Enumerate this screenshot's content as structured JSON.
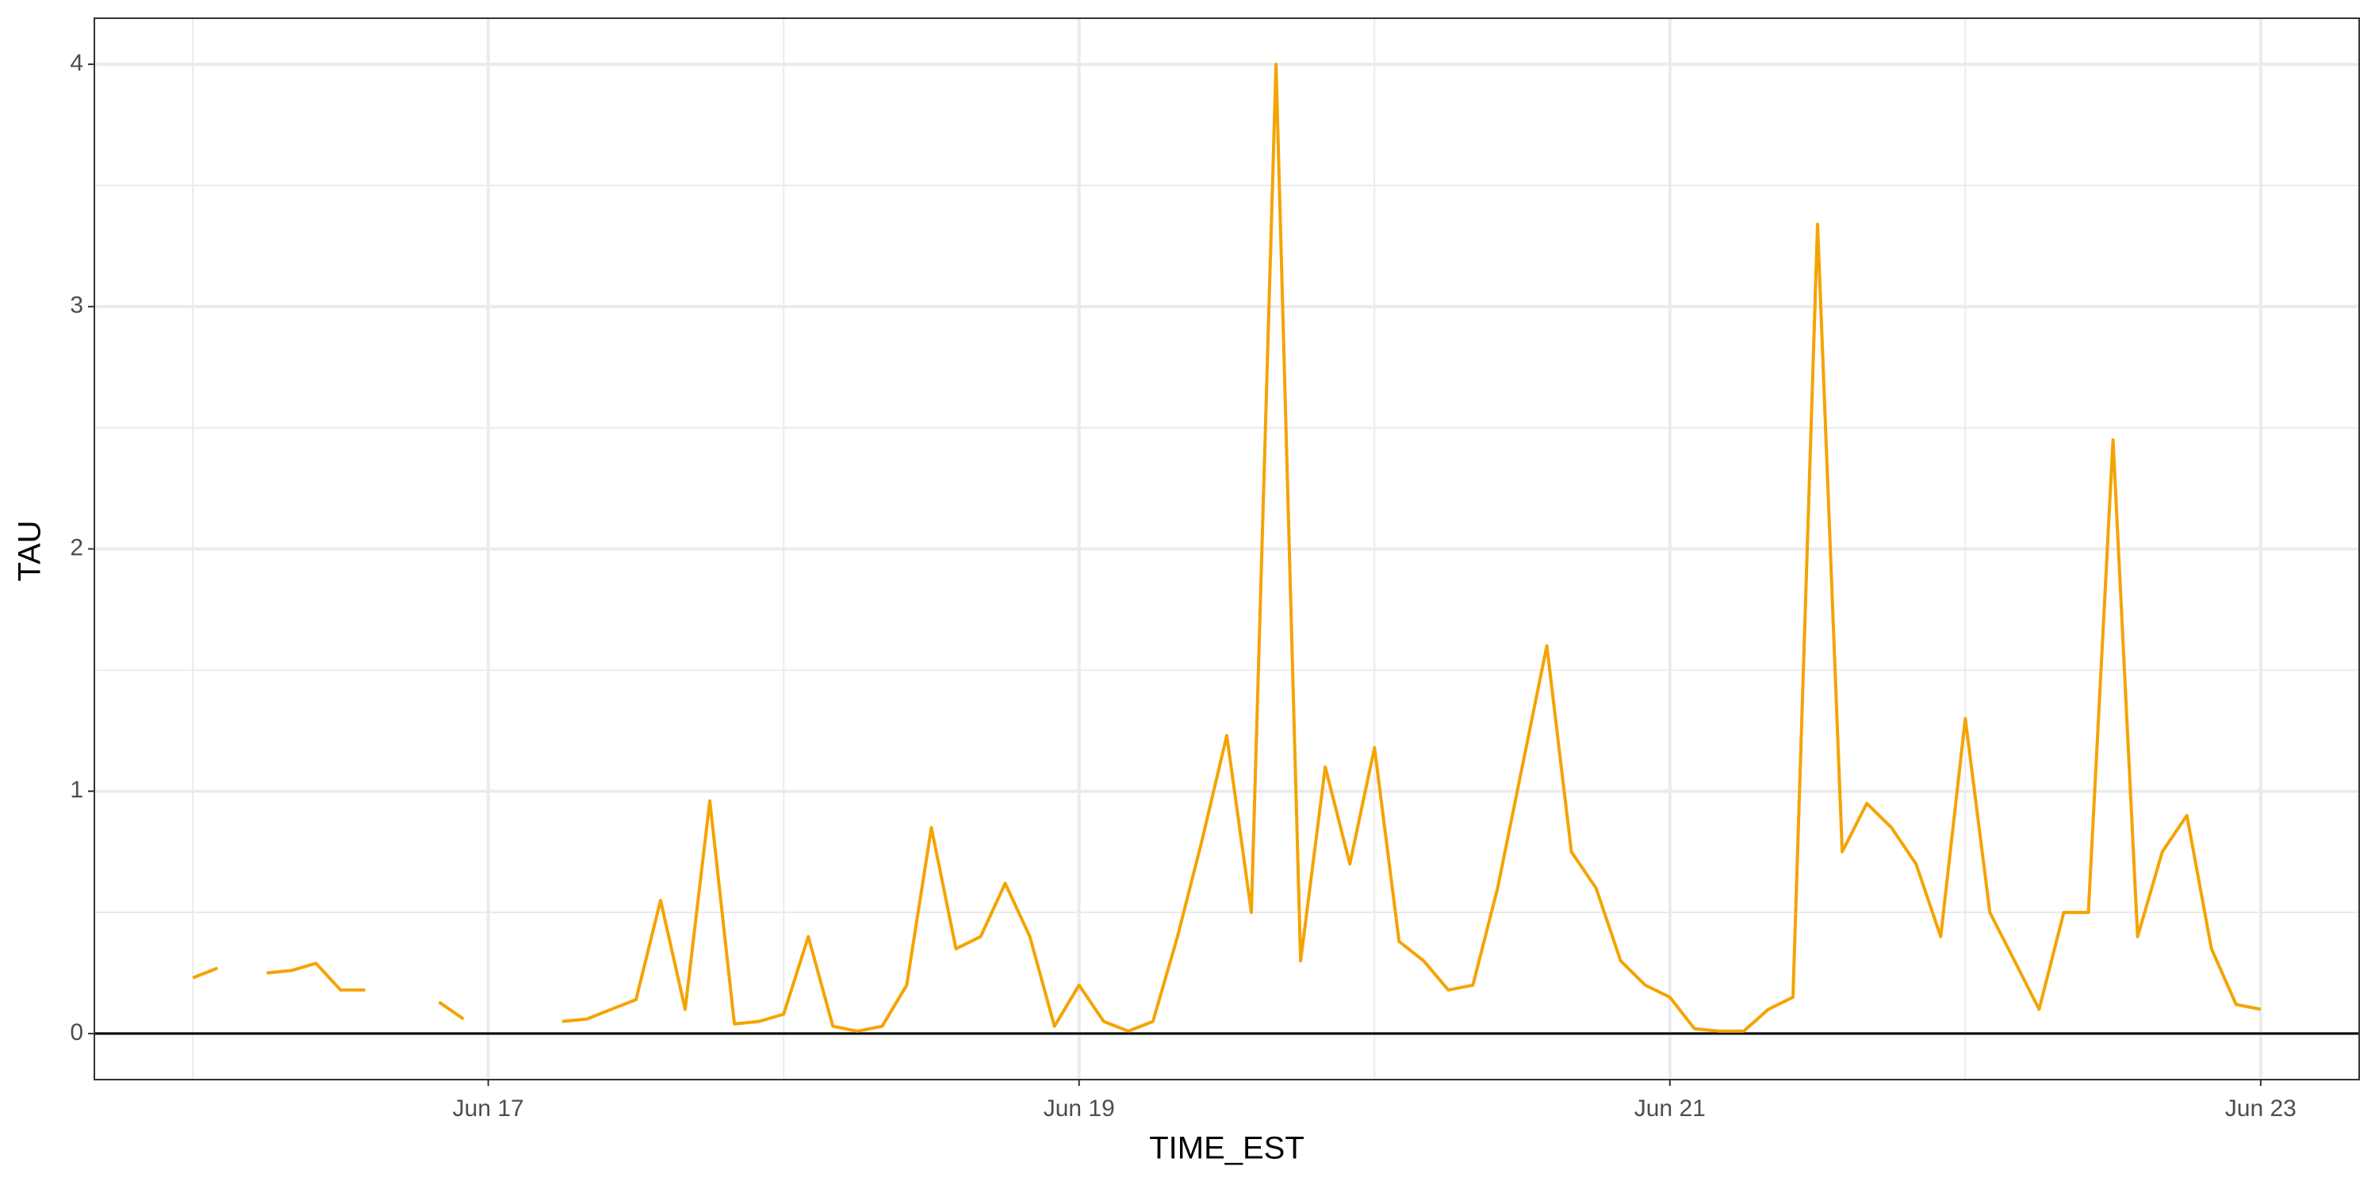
{
  "chart_data": {
    "type": "line",
    "x_label": "TIME_EST",
    "y_label": "TAU",
    "x": [
      0,
      2,
      4,
      6,
      8,
      10,
      12,
      14,
      16,
      18,
      20,
      22,
      24,
      26,
      28,
      30,
      32,
      34,
      36,
      38,
      40,
      42,
      44,
      46,
      48,
      50,
      52,
      54,
      56,
      58,
      60,
      62,
      64,
      66,
      68,
      70,
      72,
      74,
      76,
      78,
      80,
      82,
      84,
      86,
      88,
      90,
      92,
      94,
      96,
      98,
      100,
      102,
      104,
      106,
      108,
      110,
      112,
      114,
      116,
      118,
      120,
      122,
      124,
      126,
      128,
      130,
      132,
      134,
      136,
      138,
      140,
      142,
      144,
      146,
      148,
      150,
      152,
      154,
      156,
      158,
      160,
      162,
      164,
      166,
      168
    ],
    "series": [
      {
        "name": "TAU",
        "color": "#f5a300",
        "values": [
          0.23,
          0.27,
          null,
          0.25,
          0.26,
          0.29,
          0.18,
          0.18,
          null,
          null,
          0.13,
          0.06,
          null,
          null,
          null,
          0.05,
          0.06,
          0.1,
          0.14,
          0.55,
          0.1,
          0.96,
          0.04,
          0.05,
          0.08,
          0.4,
          0.03,
          0.01,
          0.03,
          0.2,
          0.85,
          0.35,
          0.4,
          0.62,
          0.4,
          0.03,
          0.2,
          0.05,
          0.01,
          0.05,
          0.4,
          0.8,
          1.23,
          0.5,
          4.0,
          0.3,
          1.1,
          0.7,
          1.18,
          0.38,
          0.3,
          0.18,
          0.2,
          0.6,
          1.1,
          1.6,
          0.75,
          0.6,
          0.3,
          0.2,
          0.15,
          0.02,
          0.01,
          0.01,
          0.1,
          0.15,
          3.34,
          0.75,
          0.95,
          0.85,
          0.7,
          0.4,
          1.3,
          0.5,
          0.3,
          0.1,
          0.5,
          0.5,
          2.45,
          0.4,
          0.75,
          0.9,
          0.35,
          0.12,
          0.1
        ]
      }
    ],
    "xlim": [
      -8,
      176
    ],
    "xticks": [
      {
        "value": 24,
        "label": "Jun 17"
      },
      {
        "value": 72,
        "label": "Jun 19"
      },
      {
        "value": 120,
        "label": "Jun 21"
      },
      {
        "value": 168,
        "label": "Jun 23"
      }
    ],
    "xminor": [
      0,
      48,
      96,
      144
    ],
    "ylim": [
      -0.19,
      4.19
    ],
    "yticks": [
      0,
      1,
      2,
      3,
      4
    ],
    "yminor": [
      0.5,
      1.5,
      2.5,
      3.5
    ],
    "hline": 0,
    "grid": true
  }
}
